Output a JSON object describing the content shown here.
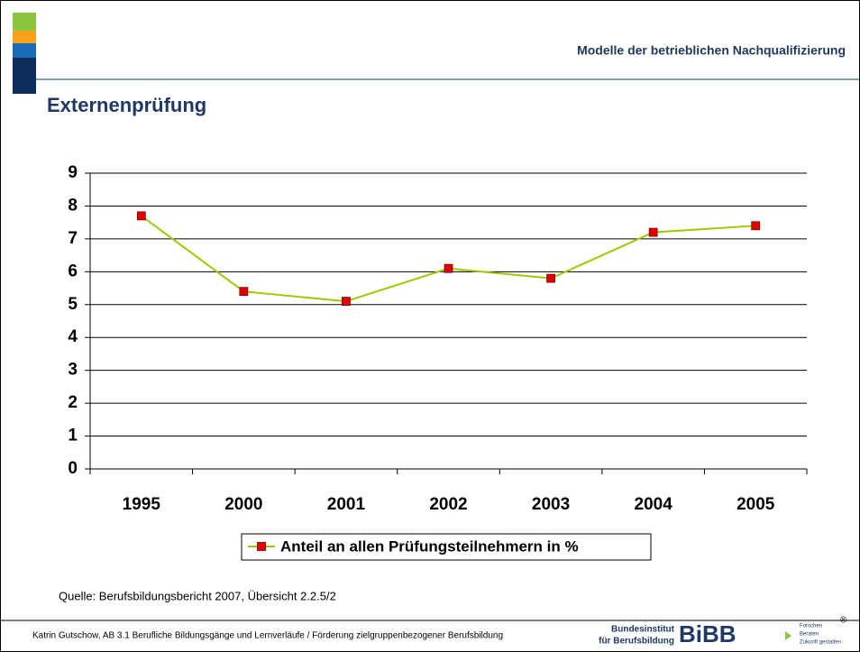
{
  "header": {
    "title": "Modelle der betrieblichen Nachqualifizierung"
  },
  "slide_title": "Externenprüfung",
  "chart_data": {
    "type": "line",
    "categories": [
      "1995",
      "2000",
      "2001",
      "2002",
      "2003",
      "2004",
      "2005"
    ],
    "series": [
      {
        "name": "Anteil an allen Prüfungsteilnehmern in %",
        "color": "#99cc00",
        "marker_color": "#e00000",
        "values": [
          7.7,
          5.4,
          5.1,
          6.1,
          5.8,
          7.2,
          7.4
        ]
      }
    ],
    "ylim": [
      0,
      9
    ],
    "yticks": [
      0,
      1,
      2,
      3,
      4,
      5,
      6,
      7,
      8,
      9
    ],
    "grid": true
  },
  "source": "Quelle: Berufsbildungsbericht 2007, Übersicht 2.2.5/2",
  "footer": {
    "text": "Katrin Gutschow, AB 3.1 Berufliche Bildungsgänge und Lernverläufe / Förderung zielgruppenbezogener Berufsbildung",
    "logo": {
      "line1": "Bundesinstitut",
      "line2": "für Berufsbildung",
      "mark": "BiBB",
      "tag1": "Forschen",
      "tag2": "Beraten",
      "tag3": "Zukunft gestalten",
      "reg": "®"
    }
  }
}
